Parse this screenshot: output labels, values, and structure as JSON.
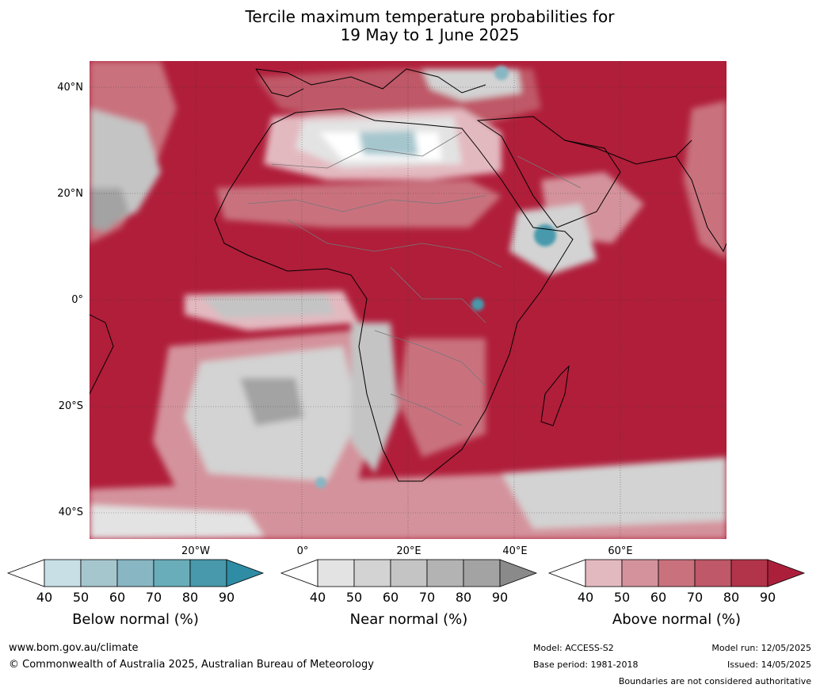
{
  "title": {
    "line1": "Tercile maximum temperature probabilities for",
    "line2": "19 May to 1 June 2025"
  },
  "map": {
    "lat_labels": [
      "40°N",
      "20°N",
      "0°",
      "20°S",
      "40°S"
    ],
    "lon_labels": [
      "20°W",
      "0°",
      "20°E",
      "40°E",
      "60°E"
    ]
  },
  "colorbars": [
    {
      "label": "Below normal (%)",
      "ticks": [
        "40",
        "50",
        "60",
        "70",
        "80",
        "90"
      ],
      "colors": [
        "#ffffff",
        "#c8dfe6",
        "#a6c6ce",
        "#88b6c3",
        "#69adba",
        "#4799ab",
        "#2e8ca4"
      ]
    },
    {
      "label": "Near normal (%)",
      "ticks": [
        "40",
        "50",
        "60",
        "70",
        "80",
        "90"
      ],
      "colors": [
        "#ffffff",
        "#e3e3e3",
        "#d3d3d3",
        "#c4c4c4",
        "#b3b3b3",
        "#a3a3a3",
        "#8a8a8a"
      ]
    },
    {
      "label": "Above normal (%)",
      "ticks": [
        "40",
        "50",
        "60",
        "70",
        "80",
        "90"
      ],
      "colors": [
        "#ffffff",
        "#e3b9c0",
        "#d4939c",
        "#c9727e",
        "#bf5868",
        "#b2344a",
        "#ac1f3a"
      ]
    }
  ],
  "footer": {
    "website": "www.bom.gov.au/climate",
    "copyright": "© Commonwealth of Australia 2025, Australian Bureau of Meteorology",
    "model": "Model: ACCESS-S2",
    "base_period": "Base period: 1981-2018",
    "model_run": "Model run: 12/05/2025",
    "issued": "Issued: 14/05/2025",
    "disclaimer": "Boundaries are not considered authoritative"
  }
}
